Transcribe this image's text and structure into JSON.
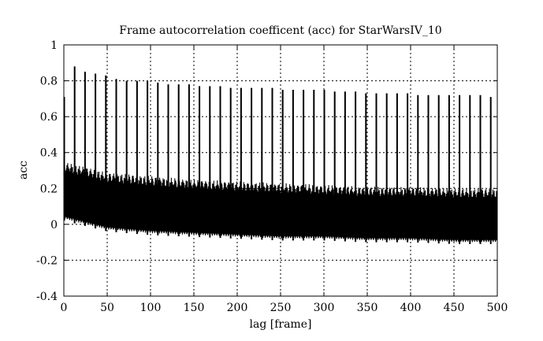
{
  "chart_data": {
    "type": "line",
    "title": "Frame autocorrelation coefficent (acc) for StarWarsIV_10",
    "xlabel": "lag [frame]",
    "ylabel": "acc",
    "xlim": [
      0,
      500
    ],
    "ylim": [
      -0.4,
      1
    ],
    "xticks": [
      0,
      50,
      100,
      150,
      200,
      250,
      300,
      350,
      400,
      450,
      500
    ],
    "yticks": [
      -0.4,
      -0.2,
      0,
      0.2,
      0.4,
      0.6,
      0.8,
      1
    ],
    "xtick_labels": [
      "0",
      "50",
      "100",
      "150",
      "200",
      "250",
      "300",
      "350",
      "400",
      "450",
      "500"
    ],
    "ytick_labels": [
      "-0.4",
      "-0.2",
      "0",
      "0.2",
      "0.4",
      "0.6",
      "0.8",
      "1"
    ],
    "grid": true,
    "series_color": "#000000",
    "peak_period_frames": 12,
    "peaks": {
      "x": [
        0,
        12,
        24,
        36,
        48,
        60,
        72,
        84,
        96,
        108,
        120,
        132,
        144,
        156,
        168,
        180,
        192,
        204,
        216,
        228,
        240,
        252,
        264,
        276,
        288,
        300,
        312,
        324,
        336,
        348,
        360,
        372,
        384,
        396,
        408,
        420,
        432,
        444,
        456,
        468,
        480,
        492
      ],
      "y": [
        0.71,
        0.88,
        0.85,
        0.84,
        0.83,
        0.81,
        0.8,
        0.8,
        0.8,
        0.79,
        0.78,
        0.78,
        0.78,
        0.77,
        0.77,
        0.77,
        0.76,
        0.76,
        0.76,
        0.76,
        0.76,
        0.75,
        0.75,
        0.75,
        0.75,
        0.75,
        0.74,
        0.74,
        0.74,
        0.73,
        0.73,
        0.73,
        0.73,
        0.73,
        0.72,
        0.72,
        0.72,
        0.72,
        0.72,
        0.72,
        0.72,
        0.71
      ]
    },
    "upper_envelope": {
      "x": [
        0,
        50,
        100,
        150,
        200,
        250,
        300,
        350,
        400,
        450,
        500
      ],
      "y": [
        0.35,
        0.29,
        0.27,
        0.25,
        0.24,
        0.23,
        0.22,
        0.21,
        0.21,
        0.2,
        0.2
      ]
    },
    "lower_envelope": {
      "x": [
        0,
        50,
        100,
        150,
        200,
        250,
        300,
        350,
        400,
        450,
        500
      ],
      "y": [
        0.03,
        -0.03,
        -0.05,
        -0.06,
        -0.07,
        -0.08,
        -0.08,
        -0.09,
        -0.09,
        -0.1,
        -0.1
      ]
    }
  }
}
